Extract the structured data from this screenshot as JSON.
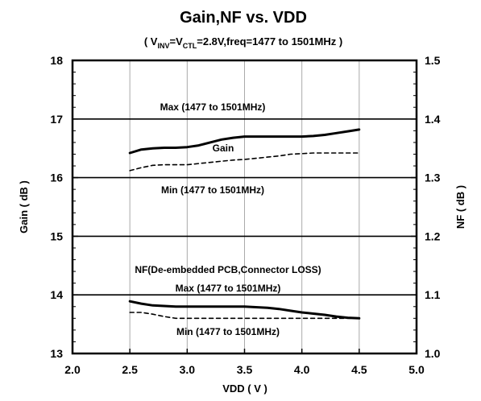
{
  "chart_data": {
    "type": "line",
    "title": "Gain,NF vs. VDD",
    "subtitle": {
      "open": "( V",
      "sub1": "INV",
      "mid": "=V",
      "sub2": "CTL",
      "rest": "=2.8V,freq=1477 to 1501MHz )"
    },
    "xlabel": "VDD ( V )",
    "ylabel_left": "Gain ( dB )",
    "ylabel_right": "NF ( dB )",
    "xlim": [
      2.0,
      5.0
    ],
    "ylim_left": [
      13,
      18
    ],
    "ylim_right": [
      1.0,
      1.5
    ],
    "x_ticks": [
      "2.0",
      "2.5",
      "3.0",
      "3.5",
      "4.0",
      "4.5",
      "5.0"
    ],
    "y_ticks_left": [
      "13",
      "14",
      "15",
      "16",
      "17",
      "18"
    ],
    "y_ticks_right": [
      "1.0",
      "1.1",
      "1.2",
      "1.3",
      "1.4",
      "1.5"
    ],
    "grid": "vertical lines at x ticks",
    "reference_lines": [
      {
        "axis": "left",
        "value": 17,
        "label": "Max (1477 to 1501MHz)"
      },
      {
        "axis": "left",
        "value": 16,
        "label": "Min (1477 to 1501MHz)"
      },
      {
        "axis": "left",
        "value": 15,
        "label": ""
      },
      {
        "axis": "right",
        "value": 1.1,
        "label": "Max (1477 to 1501MHz)"
      }
    ],
    "annotations": {
      "gain": "Gain",
      "nf": "NF(De-embedded PCB,Connector LOSS)",
      "nf_min": "Min (1477 to 1501MHz)"
    },
    "series": [
      {
        "axis": "left",
        "style": "solid",
        "x": [
          2.5,
          2.6,
          2.7,
          2.8,
          2.9,
          3.0,
          3.1,
          3.2,
          3.3,
          3.4,
          3.5,
          3.6,
          3.7,
          3.8,
          3.9,
          4.0,
          4.1,
          4.2,
          4.3,
          4.4,
          4.5
        ],
        "values": [
          16.42,
          16.48,
          16.5,
          16.51,
          16.51,
          16.52,
          16.55,
          16.6,
          16.65,
          16.68,
          16.7,
          16.7,
          16.7,
          16.7,
          16.7,
          16.7,
          16.71,
          16.73,
          16.76,
          16.79,
          16.82
        ]
      },
      {
        "axis": "left",
        "style": "dashed",
        "x": [
          2.5,
          2.6,
          2.7,
          2.8,
          2.9,
          3.0,
          3.1,
          3.2,
          3.3,
          3.4,
          3.5,
          3.6,
          3.7,
          3.8,
          3.9,
          4.0,
          4.1,
          4.2,
          4.3,
          4.4,
          4.5
        ],
        "values": [
          16.12,
          16.17,
          16.21,
          16.22,
          16.22,
          16.22,
          16.24,
          16.26,
          16.28,
          16.3,
          16.31,
          16.33,
          16.35,
          16.37,
          16.4,
          16.41,
          16.42,
          16.42,
          16.42,
          16.42,
          16.42
        ]
      },
      {
        "axis": "right",
        "style": "solid",
        "x": [
          2.5,
          2.6,
          2.7,
          2.8,
          2.9,
          3.0,
          3.1,
          3.2,
          3.3,
          3.4,
          3.5,
          3.6,
          3.7,
          3.8,
          3.9,
          4.0,
          4.1,
          4.2,
          4.3,
          4.4,
          4.5
        ],
        "values": [
          1.089,
          1.085,
          1.082,
          1.081,
          1.08,
          1.08,
          1.08,
          1.08,
          1.08,
          1.08,
          1.08,
          1.079,
          1.078,
          1.076,
          1.073,
          1.07,
          1.068,
          1.066,
          1.063,
          1.061,
          1.06
        ]
      },
      {
        "axis": "right",
        "style": "dashed",
        "x": [
          2.5,
          2.6,
          2.7,
          2.8,
          2.9,
          3.0,
          3.1,
          3.2,
          3.3,
          3.4,
          3.5,
          3.6,
          3.7,
          3.8,
          3.9,
          4.0,
          4.1,
          4.2,
          4.3,
          4.4,
          4.5
        ],
        "values": [
          1.07,
          1.07,
          1.067,
          1.063,
          1.06,
          1.06,
          1.06,
          1.06,
          1.06,
          1.06,
          1.06,
          1.06,
          1.06,
          1.06,
          1.06,
          1.06,
          1.06,
          1.06,
          1.06,
          1.06,
          1.06
        ]
      }
    ]
  }
}
